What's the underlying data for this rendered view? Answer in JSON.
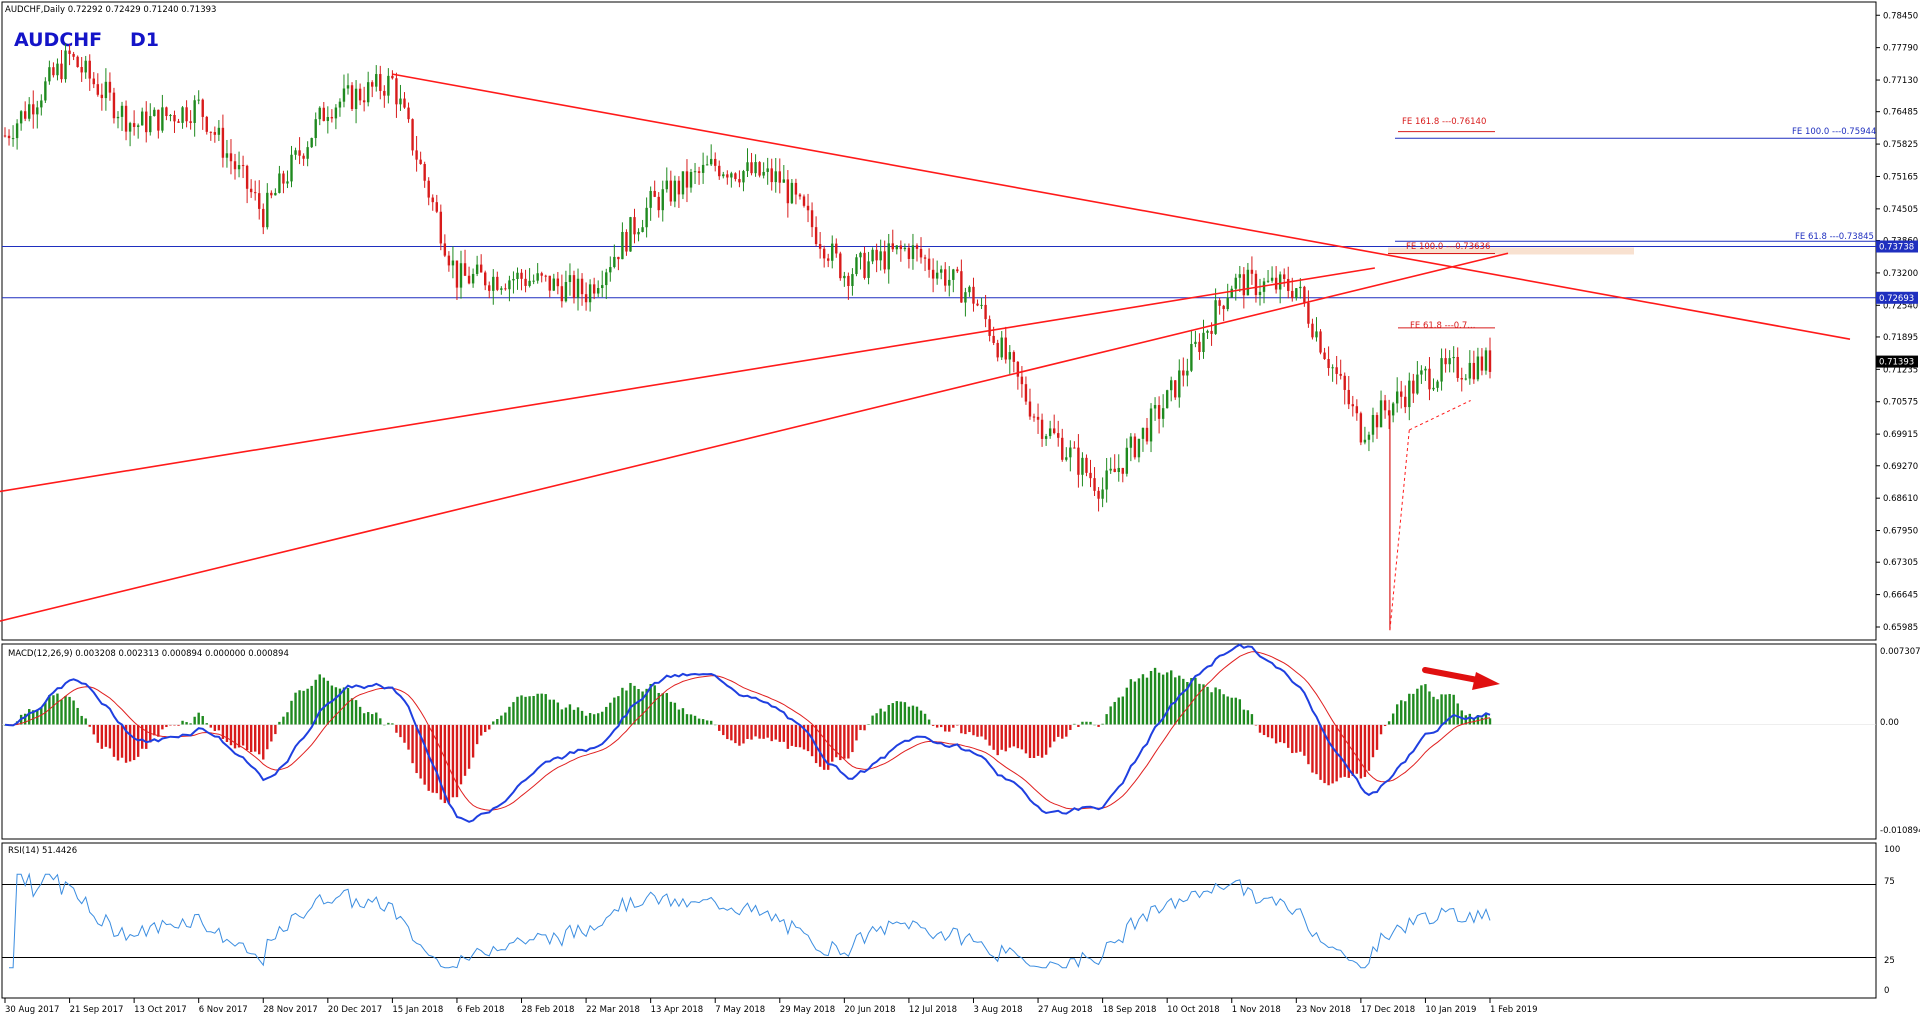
{
  "header": {
    "info": "AUDCHF,Daily  0.72292 0.72429 0.71240 0.71393",
    "symbol": "AUDCHF",
    "timeframe": "D1"
  },
  "colors": {
    "bull": "#1f8a1f",
    "bear": "#d81b1b",
    "trendline": "#ff1a1a",
    "level": "#1f2fbf",
    "macd_line": "#1f3fe0",
    "signal_line": "#e02020",
    "rsi_line": "#3b8de0",
    "title": "#1414c8"
  },
  "price_axis": {
    "ticks": [
      "0.78450",
      "0.77790",
      "0.77130",
      "0.76485",
      "0.75825",
      "0.75165",
      "0.74505",
      "0.73860",
      "0.73200",
      "0.72540",
      "0.71895",
      "0.71235",
      "0.70575",
      "0.69915",
      "0.69270",
      "0.68610",
      "0.67950",
      "0.67305",
      "0.66645",
      "0.65985"
    ],
    "level_labels": [
      "0.73738",
      "0.72693"
    ],
    "current_price": "0.71393"
  },
  "fib_labels": {
    "fe1618": "FE 161.8 ---0.76140",
    "fe1000_right": "FE 100.0 ---0.75944",
    "fe618_right": "FE 61.8 ---0.73845",
    "fe1000_mid": "FE 100.0 ---0.73636",
    "fe618_mid": "FE 61.8 ---0.7..."
  },
  "macd": {
    "label": "MACD(12,26,9) 0.003208 0.002313 0.000894 0.000000 0.000894",
    "ticks": [
      "0.007307",
      "0.00",
      "-0.010894"
    ]
  },
  "rsi": {
    "label": "RSI(14) 51.4426",
    "ticks": [
      "100",
      "75",
      "25",
      "0"
    ]
  },
  "x_axis": {
    "labels": [
      "30 Aug 2017",
      "21 Sep 2017",
      "13 Oct 2017",
      "6 Nov 2017",
      "28 Nov 2017",
      "20 Dec 2017",
      "15 Jan 2018",
      "6 Feb 2018",
      "28 Feb 2018",
      "22 Mar 2018",
      "13 Apr 2018",
      "7 May 2018",
      "29 May 2018",
      "20 Jun 2018",
      "12 Jul 2018",
      "3 Aug 2018",
      "27 Aug 2018",
      "18 Sep 2018",
      "10 Oct 2018",
      "1 Nov 2018",
      "23 Nov 2018",
      "17 Dec 2018",
      "10 Jan 2019",
      "1 Feb 2019"
    ]
  },
  "chart_data": {
    "type": "candlestick",
    "symbol": "AUDCHF",
    "timeframe": "D1",
    "ohlc_last": {
      "open": 0.72292,
      "high": 0.72429,
      "low": 0.7124,
      "close": 0.71393
    },
    "ylim": [
      0.6572,
      0.7872
    ],
    "price_path": [
      {
        "date": "30 Aug 2017",
        "close": 0.76
      },
      {
        "date": "21 Sep 2017",
        "close": 0.776
      },
      {
        "date": "13 Oct 2017",
        "close": 0.762
      },
      {
        "date": "6 Nov 2017",
        "close": 0.766
      },
      {
        "date": "28 Nov 2017",
        "close": 0.744
      },
      {
        "date": "20 Dec 2017",
        "close": 0.766
      },
      {
        "date": "15 Jan 2018",
        "close": 0.771
      },
      {
        "date": "6 Feb 2018",
        "close": 0.731
      },
      {
        "date": "28 Feb 2018",
        "close": 0.731
      },
      {
        "date": "22 Mar 2018",
        "close": 0.728
      },
      {
        "date": "13 Apr 2018",
        "close": 0.746
      },
      {
        "date": "7 May 2018",
        "close": 0.754
      },
      {
        "date": "29 May 2018",
        "close": 0.751
      },
      {
        "date": "20 Jun 2018",
        "close": 0.732
      },
      {
        "date": "12 Jul 2018",
        "close": 0.737
      },
      {
        "date": "3 Aug 2018",
        "close": 0.727
      },
      {
        "date": "27 Aug 2018",
        "close": 0.702
      },
      {
        "date": "18 Sep 2018",
        "close": 0.688
      },
      {
        "date": "10 Oct 2018",
        "close": 0.706
      },
      {
        "date": "1 Nov 2018",
        "close": 0.73
      },
      {
        "date": "23 Nov 2018",
        "close": 0.729
      },
      {
        "date": "17 Dec 2018",
        "close": 0.7
      },
      {
        "date": "10 Jan 2019",
        "close": 0.711
      },
      {
        "date": "1 Feb 2019",
        "close": 0.7139
      }
    ],
    "horizontal_levels": [
      0.73738,
      0.72693
    ],
    "fib_levels": [
      {
        "label": "FE 161.8",
        "value": 0.7614
      },
      {
        "label": "FE 100.0",
        "value": 0.75944
      },
      {
        "label": "FE 61.8",
        "value": 0.73845
      },
      {
        "label": "FE 100.0",
        "value": 0.73636
      }
    ],
    "trendlines": [
      {
        "from": {
          "date": "15 Jan 2018",
          "price": 0.7725
        },
        "to": {
          "date": "1 Feb 2019",
          "price": 0.7185
        }
      },
      {
        "from": {
          "date": "10 Sep 2018",
          "price": 0.686
        },
        "to": {
          "date": "17 Dec 2018",
          "price": 0.733
        }
      },
      {
        "from": {
          "date": "28 Dec 2018",
          "price": 0.659
        },
        "to": {
          "date": "1 Feb 2019",
          "price": 0.736
        }
      }
    ],
    "macd": {
      "params": "12,26,9",
      "values": [
        0.003208,
        0.002313,
        0.000894,
        0.0,
        0.000894
      ],
      "range": [
        -0.010894,
        0.007307
      ]
    },
    "rsi": {
      "period": 14,
      "value": 51.4426,
      "levels": [
        75,
        25
      ],
      "range": [
        0,
        100
      ]
    }
  }
}
